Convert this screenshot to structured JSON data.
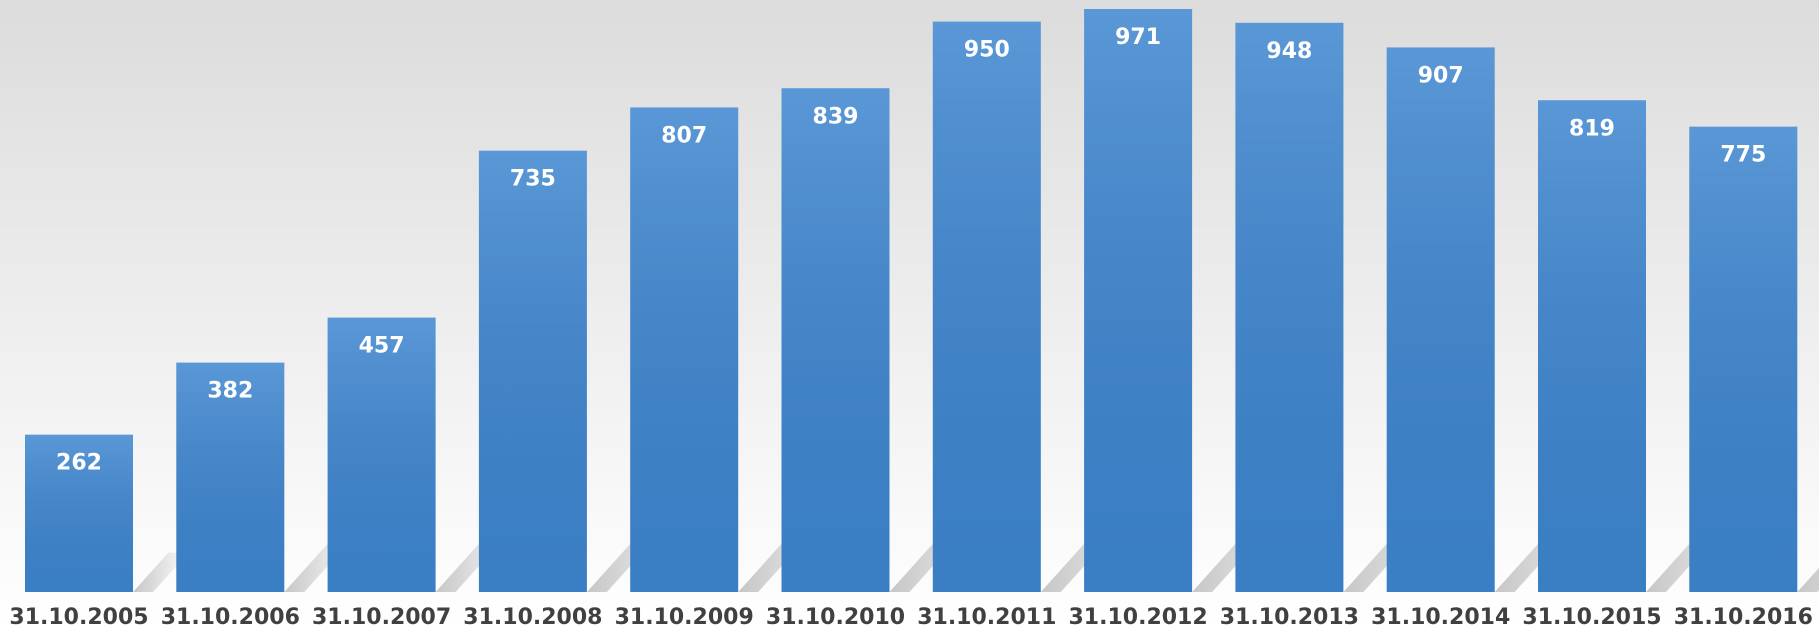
{
  "chart_data": {
    "type": "bar",
    "categories": [
      "31.10.2005",
      "31.10.2006",
      "31.10.2007",
      "31.10.2008",
      "31.10.2009",
      "31.10.2010",
      "31.10.2011",
      "31.10.2012",
      "31.10.2013",
      "31.10.2014",
      "31.10.2015",
      "31.10.2016"
    ],
    "values": [
      262,
      382,
      457,
      735,
      807,
      839,
      950,
      971,
      948,
      907,
      819,
      775
    ],
    "color": "#3d85cf"
  }
}
